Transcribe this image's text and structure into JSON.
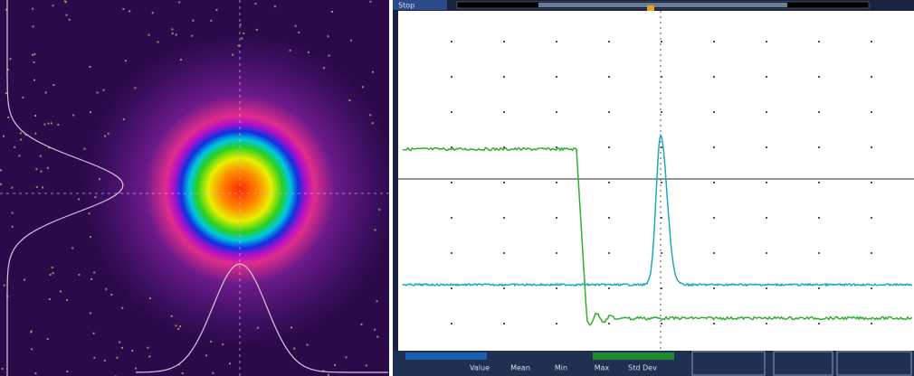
{
  "scope": {
    "status": "Stop",
    "measurements": {
      "headers": [
        "Value",
        "Mean",
        "Min",
        "Max",
        "Std Dev"
      ]
    }
  }
}
